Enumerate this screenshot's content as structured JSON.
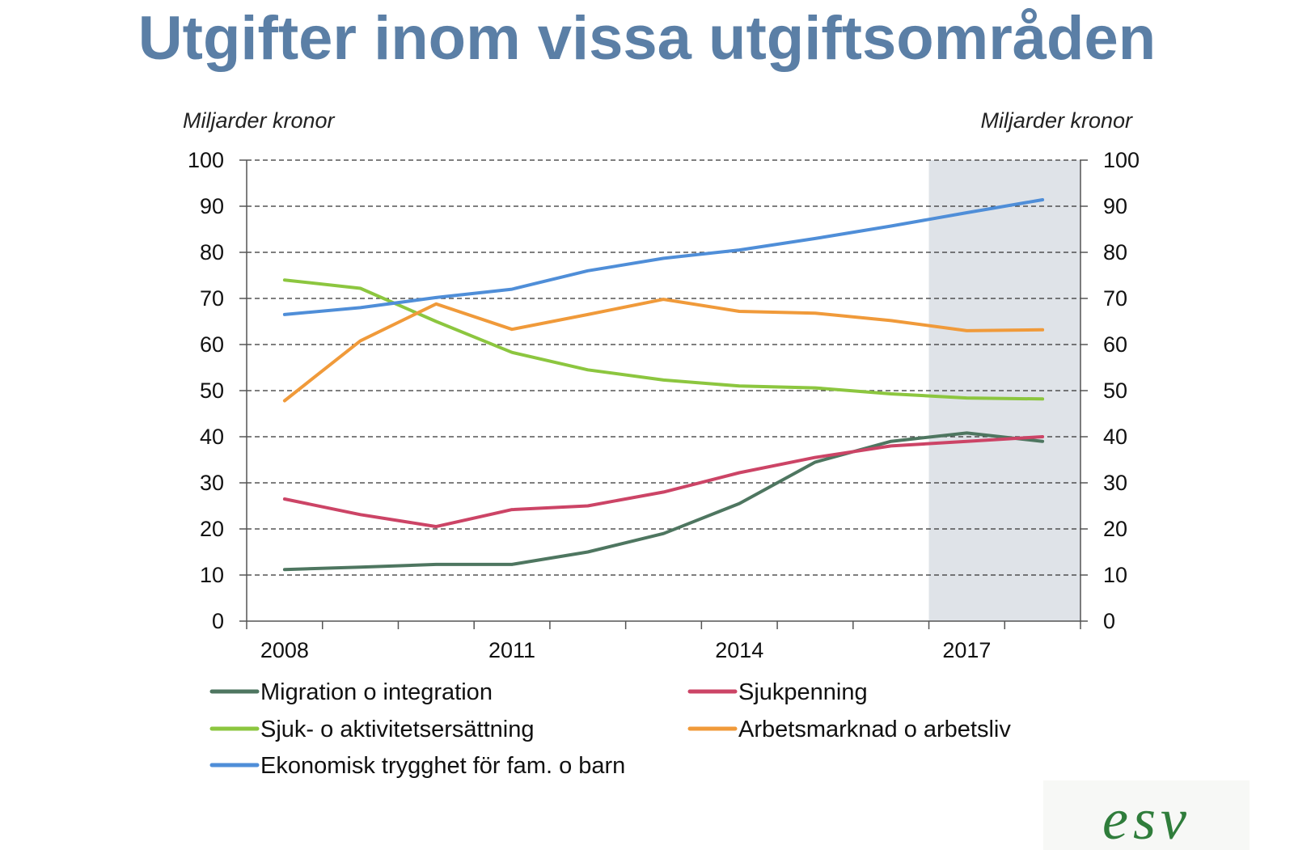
{
  "title": "Utgifter inom vissa utgiftsområden",
  "colors": {
    "title": "#5b7fa6",
    "forecast_shade": "#dfe3e8",
    "logo": "#2f7d3b"
  },
  "logo": {
    "text": "esv"
  },
  "chart_data": {
    "type": "line",
    "title": "Utgifter inom vissa utgiftsområden",
    "ylabel_left": "Miljarder kronor",
    "ylabel_right": "Miljarder kronor",
    "ylim": [
      0,
      100
    ],
    "yticks": [
      "0",
      "10",
      "20",
      "30",
      "40",
      "50",
      "60",
      "70",
      "80",
      "90",
      "100"
    ],
    "x": [
      2008,
      2009,
      2010,
      2011,
      2012,
      2013,
      2014,
      2015,
      2016,
      2017,
      2018
    ],
    "xlim": [
      2007.5,
      2018.5
    ],
    "xtick_labels": [
      "2008",
      "2011",
      "2014",
      "2017"
    ],
    "xtick_label_years": [
      2008,
      2011,
      2014,
      2017
    ],
    "forecast_from": 2016.5,
    "grid": "dashed horizontal",
    "legend_position": "bottom",
    "series": [
      {
        "name": "Migration o integration",
        "color": "#4e7660",
        "values": [
          11.2,
          11.7,
          12.3,
          12.3,
          15,
          19,
          25.5,
          34.5,
          39,
          40.8,
          39
        ]
      },
      {
        "name": "Sjukpenning",
        "color": "#cc4466",
        "values": [
          26.5,
          23.1,
          20.5,
          24.2,
          25,
          28,
          32.2,
          35.5,
          38,
          39,
          40
        ]
      },
      {
        "name": "Sjuk- o aktivitetsersättning",
        "color": "#8cc63f",
        "values": [
          74,
          72.2,
          65,
          58.3,
          54.5,
          52.3,
          51,
          50.6,
          49.3,
          48.4,
          48.2
        ]
      },
      {
        "name": "Arbetsmarknad o arbetsliv",
        "color": "#f09a3a",
        "values": [
          47.8,
          60.8,
          68.8,
          63.3,
          66.5,
          69.8,
          67.2,
          66.8,
          65.2,
          63,
          63.2
        ]
      },
      {
        "name": "Ekonomisk trygghet för fam. o barn",
        "color": "#4f8ed8",
        "values": [
          66.5,
          68,
          70.2,
          72,
          76,
          78.7,
          80.5,
          83,
          85.7,
          88.6,
          91.4
        ]
      }
    ]
  }
}
